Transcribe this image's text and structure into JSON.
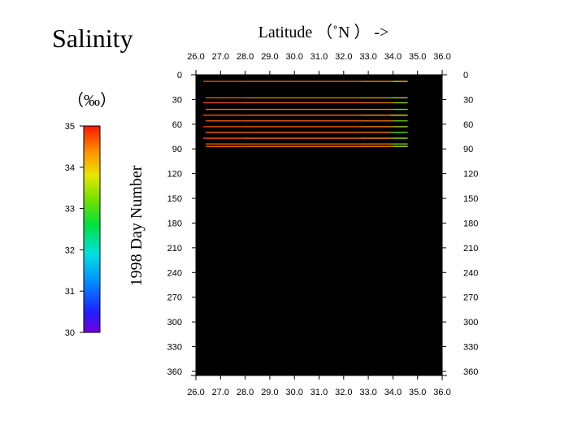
{
  "chart_data": {
    "type": "line",
    "title": "Salinity",
    "xlabel": "Latitude （˚N ） ->",
    "ylabel": "1998   Day  Number",
    "colorbar": {
      "label": "（‰）",
      "range": [
        30,
        35
      ],
      "ticks": [
        "35",
        "34",
        "33",
        "32",
        "31",
        "30"
      ]
    },
    "xlim": [
      26.0,
      36.0
    ],
    "ylim": [
      365,
      0
    ],
    "x_ticks": [
      "26.0",
      "27.0",
      "28.0",
      "29.0",
      "30.0",
      "31.0",
      "32.0",
      "33.0",
      "34.0",
      "35.0",
      "36.0"
    ],
    "y_ticks": [
      "0",
      "30",
      "60",
      "90",
      "120",
      "150",
      "180",
      "210",
      "240",
      "270",
      "300",
      "330",
      "360"
    ],
    "background": "#000000",
    "tracks": [
      {
        "day": 8,
        "segments": [
          {
            "x": [
              26.3,
              27.8
            ],
            "s": 34.7
          },
          {
            "x": [
              27.8,
              32.7
            ],
            "s": 34.6
          },
          {
            "x": [
              32.7,
              34.0
            ],
            "s": 34.4
          },
          {
            "x": [
              34.0,
              34.6
            ],
            "s": 33.9
          }
        ]
      },
      {
        "day": 28,
        "segments": [
          {
            "x": [
              26.4,
              28.0
            ],
            "s": 34.6
          },
          {
            "x": [
              28.0,
              32.7
            ],
            "s": 34.5
          },
          {
            "x": [
              32.7,
              33.9
            ],
            "s": 34.3
          },
          {
            "x": [
              33.9,
              34.6
            ],
            "s": 33.6
          }
        ]
      },
      {
        "day": 34,
        "segments": [
          {
            "x": [
              26.3,
              27.9
            ],
            "s": 34.7
          },
          {
            "x": [
              27.9,
              32.7
            ],
            "s": 34.6
          },
          {
            "x": [
              32.7,
              34.0
            ],
            "s": 34.5
          },
          {
            "x": [
              34.0,
              34.6
            ],
            "s": 33.4
          }
        ]
      },
      {
        "day": 42,
        "segments": [
          {
            "x": [
              26.4,
              27.9
            ],
            "s": 34.6
          },
          {
            "x": [
              27.9,
              32.6
            ],
            "s": 34.6
          },
          {
            "x": [
              32.6,
              34.0
            ],
            "s": 34.5
          },
          {
            "x": [
              34.0,
              34.6
            ],
            "s": 33.3
          }
        ]
      },
      {
        "day": 49,
        "segments": [
          {
            "x": [
              26.3,
              28.0
            ],
            "s": 34.7
          },
          {
            "x": [
              28.0,
              32.7
            ],
            "s": 34.6
          },
          {
            "x": [
              32.7,
              33.9
            ],
            "s": 34.4
          },
          {
            "x": [
              33.9,
              34.6
            ],
            "s": 33.7
          }
        ]
      },
      {
        "day": 56,
        "segments": [
          {
            "x": [
              26.4,
              27.9
            ],
            "s": 34.6
          },
          {
            "x": [
              27.9,
              32.6
            ],
            "s": 34.6
          },
          {
            "x": [
              32.6,
              34.0
            ],
            "s": 34.5
          },
          {
            "x": [
              34.0,
              34.6
            ],
            "s": 33.2
          }
        ]
      },
      {
        "day": 63,
        "segments": [
          {
            "x": [
              26.3,
              27.9
            ],
            "s": 34.7
          },
          {
            "x": [
              27.9,
              32.7
            ],
            "s": 34.6
          },
          {
            "x": [
              32.7,
              34.0
            ],
            "s": 34.4
          },
          {
            "x": [
              34.0,
              34.6
            ],
            "s": 33.5
          }
        ]
      },
      {
        "day": 70,
        "segments": [
          {
            "x": [
              26.4,
              28.0
            ],
            "s": 34.6
          },
          {
            "x": [
              28.0,
              32.6
            ],
            "s": 34.6
          },
          {
            "x": [
              32.6,
              33.9
            ],
            "s": 34.5
          },
          {
            "x": [
              33.9,
              34.6
            ],
            "s": 33.1
          }
        ]
      },
      {
        "day": 77,
        "segments": [
          {
            "x": [
              26.3,
              27.9
            ],
            "s": 34.7
          },
          {
            "x": [
              27.9,
              32.7
            ],
            "s": 34.6
          },
          {
            "x": [
              32.7,
              34.0
            ],
            "s": 34.4
          },
          {
            "x": [
              34.0,
              34.6
            ],
            "s": 33.4
          }
        ]
      },
      {
        "day": 84,
        "segments": [
          {
            "x": [
              26.4,
              27.9
            ],
            "s": 34.6
          },
          {
            "x": [
              27.9,
              32.7
            ],
            "s": 34.6
          },
          {
            "x": [
              32.7,
              33.9
            ],
            "s": 34.5
          },
          {
            "x": [
              33.9,
              34.6
            ],
            "s": 33.3
          }
        ]
      },
      {
        "day": 87,
        "segments": [
          {
            "x": [
              26.4,
              28.0
            ],
            "s": 34.6
          },
          {
            "x": [
              28.0,
              32.7
            ],
            "s": 34.5
          },
          {
            "x": [
              32.7,
              34.0
            ],
            "s": 34.4
          },
          {
            "x": [
              34.0,
              34.6
            ],
            "s": 33.6
          }
        ]
      }
    ]
  }
}
